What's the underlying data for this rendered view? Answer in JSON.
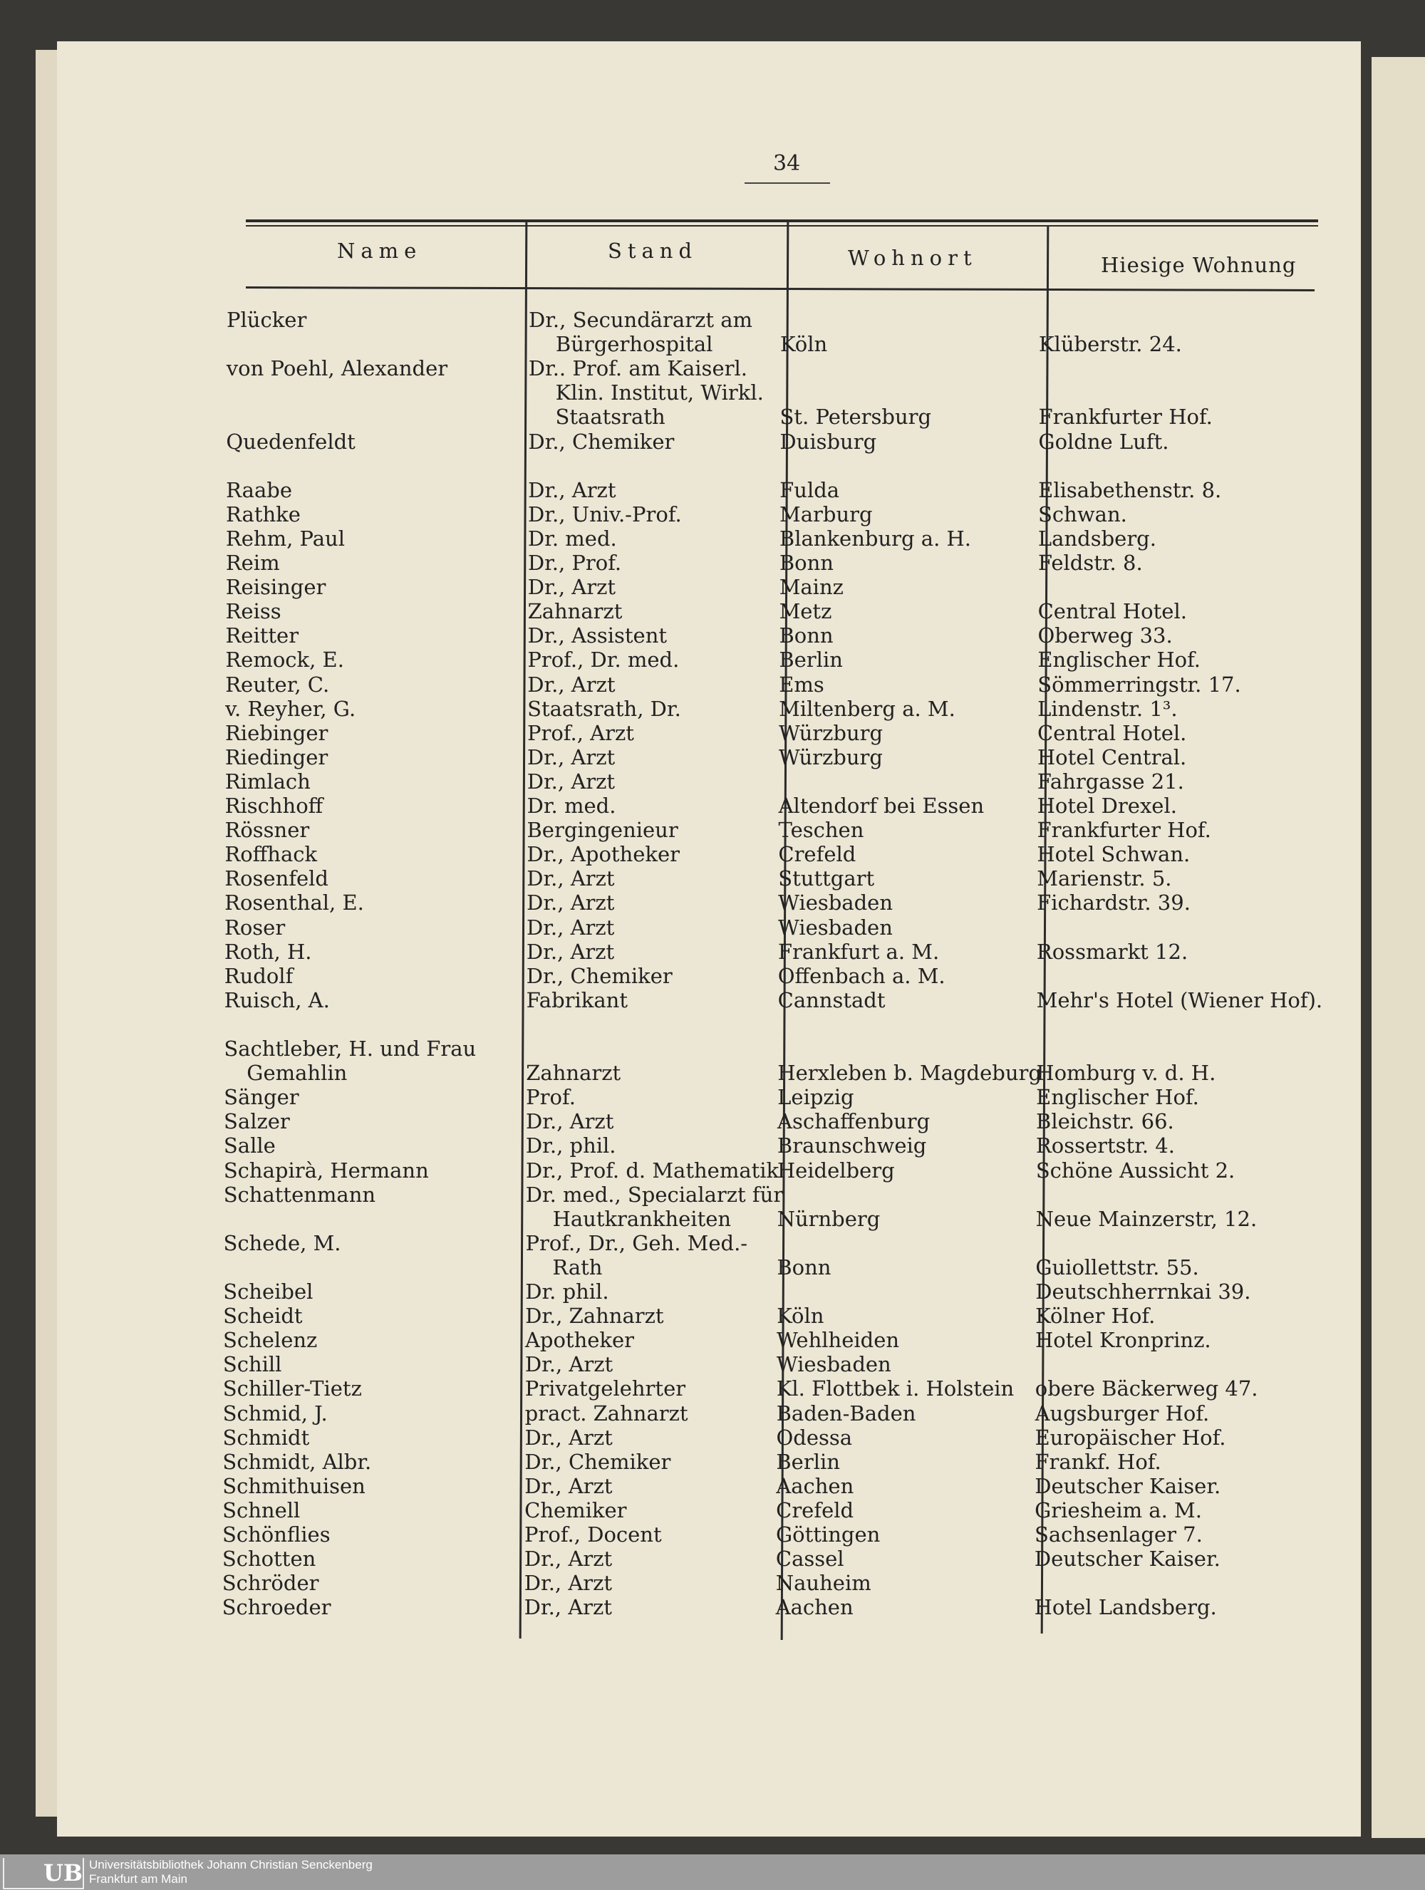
{
  "page_number": "34",
  "headers": {
    "name": "Name",
    "stand": "Stand",
    "wohnort": "Wohnort",
    "wohnung": "Hiesige Wohnung"
  },
  "rows": [
    [
      "Plücker",
      "Dr., Secundärarzt am",
      "",
      ""
    ],
    [
      "",
      "Bürgerhospital",
      "Köln",
      "Klüberstr. 24."
    ],
    [
      "von Poehl, Alexander",
      "Dr.. Prof. am Kaiserl.",
      "",
      ""
    ],
    [
      "",
      "Klin. Institut, Wirkl.",
      "",
      ""
    ],
    [
      "",
      "Staatsrath",
      "St. Petersburg",
      "Frankfurter Hof."
    ],
    [
      "Quedenfeldt",
      "Dr., Chemiker",
      "Duisburg",
      "Goldne Luft."
    ],
    [
      "",
      "",
      "",
      ""
    ],
    [
      "Raabe",
      "Dr., Arzt",
      "Fulda",
      "Elisabethenstr. 8."
    ],
    [
      "Rathke",
      "Dr., Univ.-Prof.",
      "Marburg",
      "Schwan."
    ],
    [
      "Rehm, Paul",
      "Dr. med.",
      "Blankenburg a. H.",
      "Landsberg."
    ],
    [
      "Reim",
      "Dr., Prof.",
      "Bonn",
      "Feldstr. 8."
    ],
    [
      "Reisinger",
      "Dr., Arzt",
      "Mainz",
      ""
    ],
    [
      "Reiss",
      "Zahnarzt",
      "Metz",
      "Central Hotel."
    ],
    [
      "Reitter",
      "Dr., Assistent",
      "Bonn",
      "Oberweg 33."
    ],
    [
      "Remock, E.",
      "Prof., Dr. med.",
      "Berlin",
      "Englischer Hof."
    ],
    [
      "Reuter, C.",
      "Dr., Arzt",
      "Ems",
      "Sömmerringstr. 17."
    ],
    [
      "v. Reyher, G.",
      "Staatsrath, Dr.",
      "Miltenberg a. M.",
      "Lindenstr. 1³."
    ],
    [
      "Riebinger",
      "Prof., Arzt",
      "Würzburg",
      "Central Hotel."
    ],
    [
      "Riedinger",
      "Dr., Arzt",
      "Würzburg",
      "Hotel Central."
    ],
    [
      "Rimlach",
      "Dr., Arzt",
      "",
      "Fahrgasse 21."
    ],
    [
      "Rischhoff",
      "Dr. med.",
      "Altendorf bei Essen",
      "Hotel Drexel."
    ],
    [
      "Rössner",
      "Bergingenieur",
      "Teschen",
      "Frankfurter Hof."
    ],
    [
      "Roffhack",
      "Dr., Apotheker",
      "Crefeld",
      "Hotel Schwan."
    ],
    [
      "Rosenfeld",
      "Dr., Arzt",
      "Stuttgart",
      "Marienstr. 5."
    ],
    [
      "Rosenthal, E.",
      "Dr., Arzt",
      "Wiesbaden",
      "Fichardstr. 39."
    ],
    [
      "Roser",
      "Dr., Arzt",
      "Wiesbaden",
      ""
    ],
    [
      "Roth, H.",
      "Dr., Arzt",
      "Frankfurt a. M.",
      "Rossmarkt 12."
    ],
    [
      "Rudolf",
      "Dr., Chemiker",
      "Offenbach a. M.",
      ""
    ],
    [
      "Ruisch, A.",
      "Fabrikant",
      "Cannstadt",
      "Mehr's Hotel (Wiener Hof)."
    ],
    [
      "",
      "",
      "",
      ""
    ],
    [
      "Sachtleber, H. und Frau",
      "",
      "",
      ""
    ],
    [
      "Gemahlin",
      "Zahnarzt",
      "Herxleben b. Magdeburg",
      "Homburg v. d. H."
    ],
    [
      "Sänger",
      "Prof.",
      "Leipzig",
      "Englischer Hof."
    ],
    [
      "Salzer",
      "Dr., Arzt",
      "Aschaffenburg",
      "Bleichstr. 66."
    ],
    [
      "Salle",
      "Dr., phil.",
      "Braunschweig",
      "Rossertstr. 4."
    ],
    [
      "Schapirà, Hermann",
      "Dr., Prof. d. Mathematik",
      "Heidelberg",
      "Schöne Aussicht 2."
    ],
    [
      "Schattenmann",
      "Dr. med., Specialarzt für",
      "",
      ""
    ],
    [
      "",
      "Hautkrankheiten",
      "Nürnberg",
      "Neue Mainzerstr, 12."
    ],
    [
      "Schede, M.",
      "Prof., Dr., Geh. Med.-",
      "",
      ""
    ],
    [
      "",
      "Rath",
      "Bonn",
      "Guiollettstr. 55."
    ],
    [
      "Scheibel",
      "Dr. phil.",
      "",
      "Deutschherrnkai 39."
    ],
    [
      "Scheidt",
      "Dr., Zahnarzt",
      "Köln",
      "Kölner Hof."
    ],
    [
      "Schelenz",
      "Apotheker",
      "Wehlheiden",
      "Hotel Kronprinz."
    ],
    [
      "Schill",
      "Dr., Arzt",
      "Wiesbaden",
      ""
    ],
    [
      "Schiller-Tietz",
      "Privatgelehrter",
      "Kl. Flottbek i. Holstein",
      "obere Bäckerweg 47."
    ],
    [
      "Schmid, J.",
      "pract. Zahnarzt",
      "Baden-Baden",
      "Augsburger Hof."
    ],
    [
      "Schmidt",
      "Dr., Arzt",
      "Odessa",
      "Europäischer Hof."
    ],
    [
      "Schmidt, Albr.",
      "Dr., Chemiker",
      "Berlin",
      "Frankf. Hof."
    ],
    [
      "Schmithuisen",
      "Dr., Arzt",
      "Aachen",
      "Deutscher Kaiser."
    ],
    [
      "Schnell",
      "Chemiker",
      "Crefeld",
      "Griesheim a. M."
    ],
    [
      "Schönflies",
      "Prof., Docent",
      "Göttingen",
      "Sachsenlager 7."
    ],
    [
      "Schotten",
      "Dr., Arzt",
      "Cassel",
      "Deutscher Kaiser."
    ],
    [
      "Schröder",
      "Dr., Arzt",
      "Nauheim",
      ""
    ],
    [
      "Schroeder",
      "Dr., Arzt",
      "Aachen",
      "Hotel Landsberg."
    ]
  ],
  "footer": {
    "logo_text": "UB",
    "line1": "Universitätsbibliothek Johann Christian Senckenberg",
    "line2": "Frankfurt am Main"
  }
}
